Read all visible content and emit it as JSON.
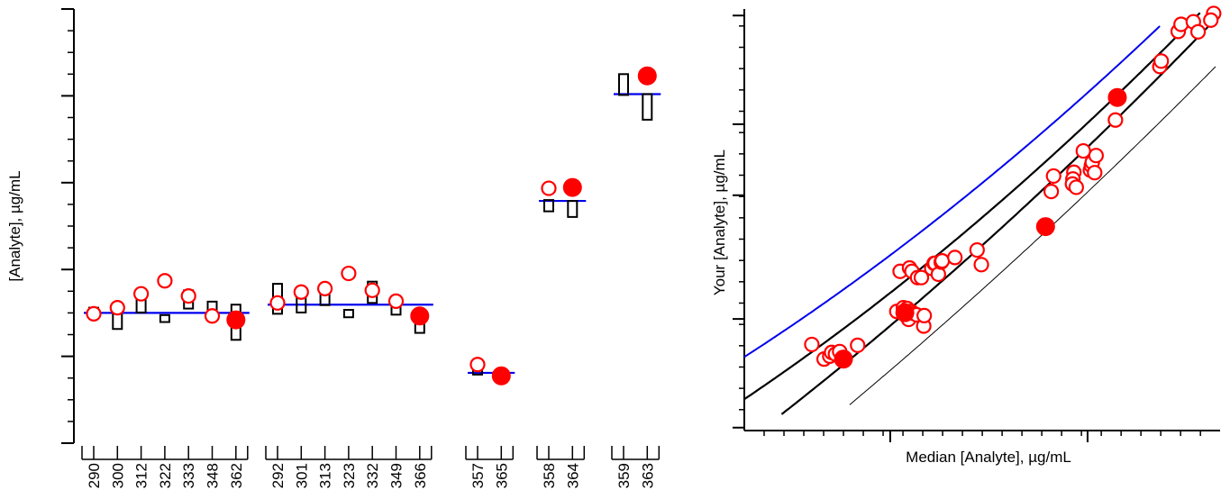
{
  "colors": {
    "axis": "#000000",
    "median_line": "#0000ee",
    "your_result": "#ff0000",
    "blue_curve": "#0000ee"
  },
  "chart_data": [
    {
      "type": "scatter",
      "ylabel": "[Analyte], µg/mL",
      "ylim": [
        0,
        100
      ],
      "groups": [
        {
          "labels": [
            "290",
            "300",
            "312",
            "322",
            "333",
            "348",
            "362"
          ],
          "median": 30.0,
          "boxes": [
            [
              29.1,
              31.2
            ],
            [
              26.3,
              29.8
            ],
            [
              30.1,
              33.5
            ],
            [
              27.9,
              29.5
            ],
            [
              31.0,
              35.2
            ],
            [
              28.6,
              32.6
            ],
            [
              23.8,
              31.9
            ]
          ],
          "circles": [
            29.8,
            31.2,
            34.4,
            37.4,
            33.9,
            29.3,
            null
          ],
          "filled": [
            null,
            null,
            null,
            null,
            null,
            null,
            28.4
          ]
        },
        {
          "labels": [
            "292",
            "301",
            "313",
            "323",
            "332",
            "349",
            "366"
          ],
          "median": 31.9,
          "boxes": [
            [
              29.8,
              36.7
            ],
            [
              30.1,
              33.9
            ],
            [
              31.8,
              36.1
            ],
            [
              29.0,
              30.7
            ],
            [
              32.3,
              37.2
            ],
            [
              29.6,
              32.1
            ],
            [
              25.4,
              29.3
            ]
          ],
          "circles": [
            32.3,
            34.8,
            35.6,
            39.1,
            35.2,
            32.7,
            null
          ],
          "filled": [
            null,
            null,
            null,
            null,
            null,
            null,
            29.3
          ]
        },
        {
          "labels": [
            "357",
            "365"
          ],
          "median": 16.2,
          "boxes": [
            [
              15.8,
              16.8
            ],
            null
          ],
          "circles": [
            18.1,
            null
          ],
          "filled": [
            null,
            15.5
          ]
        },
        {
          "labels": [
            "358",
            "364"
          ],
          "median": 55.8,
          "boxes": [
            [
              53.4,
              56.0
            ],
            [
              52.1,
              55.8
            ]
          ],
          "circles": [
            58.7,
            null
          ],
          "filled": [
            null,
            58.9
          ]
        },
        {
          "labels": [
            "359",
            "363"
          ],
          "median": 80.4,
          "boxes": [
            [
              80.2,
              85.0
            ],
            [
              74.5,
              80.4
            ]
          ],
          "circles": [
            null,
            null
          ],
          "filled": [
            null,
            84.6
          ]
        }
      ]
    },
    {
      "type": "scatter",
      "xlabel": "Median [Analyte], µg/mL",
      "ylabel": "Your [Analyte], µg/mL",
      "xlim": [
        0,
        100
      ],
      "ylim": [
        0,
        100
      ],
      "open_points": [
        [
          14.3,
          20.6
        ],
        [
          16.9,
          17.1
        ],
        [
          18.1,
          17.8
        ],
        [
          18.5,
          18.7
        ],
        [
          19.3,
          18.3
        ],
        [
          20.2,
          18.9
        ],
        [
          24.0,
          20.4
        ],
        [
          32.3,
          28.5
        ],
        [
          33.7,
          29.4
        ],
        [
          34.5,
          29.2
        ],
        [
          34.8,
          26.6
        ],
        [
          35.3,
          28.5
        ],
        [
          35.9,
          28.0
        ],
        [
          36.5,
          27.7
        ],
        [
          33.0,
          38.1
        ],
        [
          35.0,
          38.9
        ],
        [
          35.5,
          38.1
        ],
        [
          36.7,
          36.6
        ],
        [
          37.5,
          36.6
        ],
        [
          38.0,
          25.0
        ],
        [
          38.1,
          27.5
        ],
        [
          39.7,
          38.8
        ],
        [
          40.2,
          40.0
        ],
        [
          40.4,
          40.0
        ],
        [
          41.1,
          37.4
        ],
        [
          41.7,
          40.3
        ],
        [
          41.9,
          40.6
        ],
        [
          44.6,
          41.4
        ],
        [
          49.3,
          43.2
        ],
        [
          50.2,
          39.7
        ],
        [
          65.0,
          57.2
        ],
        [
          65.5,
          60.9
        ],
        [
          69.8,
          61.8
        ],
        [
          69.6,
          60.2
        ],
        [
          69.5,
          59.0
        ],
        [
          70.3,
          58.2
        ],
        [
          71.8,
          66.9
        ],
        [
          73.3,
          62.3
        ],
        [
          73.5,
          63.4
        ],
        [
          73.7,
          64.2
        ],
        [
          74.2,
          61.7
        ],
        [
          74.5,
          65.8
        ],
        [
          78.6,
          74.3
        ],
        [
          88.0,
          87.1
        ],
        [
          88.3,
          88.4
        ],
        [
          91.9,
          95.5
        ],
        [
          92.5,
          97.2
        ],
        [
          95.1,
          97.8
        ],
        [
          96.1,
          95.4
        ],
        [
          99.4,
          99.8
        ],
        [
          98.8,
          98.2
        ]
      ],
      "filled_points": [
        [
          21.0,
          17.1
        ],
        [
          34.0,
          28.2
        ],
        [
          63.8,
          48.8
        ],
        [
          79.0,
          79.7
        ]
      ]
    }
  ]
}
